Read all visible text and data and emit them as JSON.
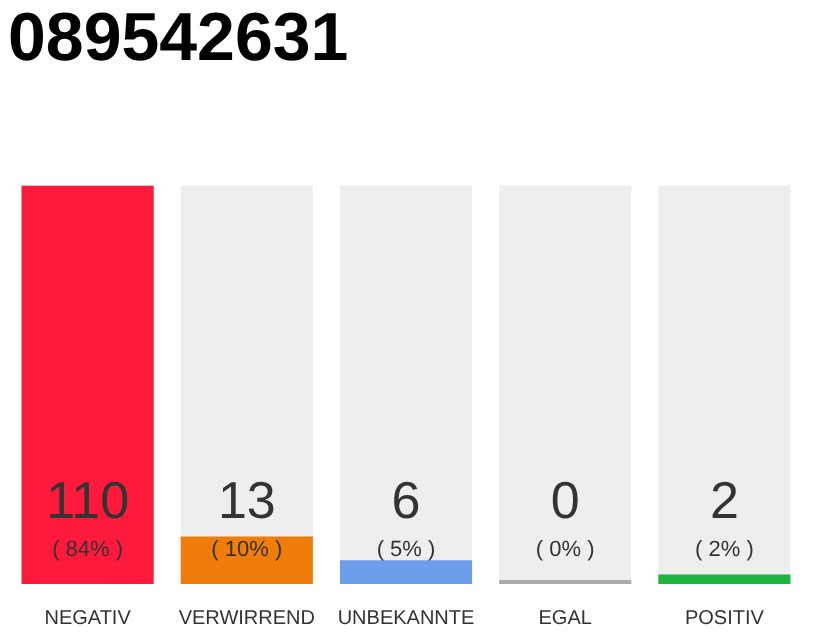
{
  "chart_data": {
    "type": "bar",
    "title": "089542631",
    "categories": [
      "NEGATIV",
      "VERWIRREND",
      "UNBEKANNTE",
      "EGAL",
      "POSITIV"
    ],
    "values": [
      84,
      10,
      5,
      0,
      2
    ],
    "colors": [
      "#ff1a3c",
      "#f07c0a",
      "#6d9eeb",
      "#aaaaaa",
      "#1db33f"
    ],
    "value_labels": [
      "( 84% )",
      "( 10% )",
      "( 5% )",
      "( 0% )",
      "( 2% )"
    ],
    "annotations": [
      "110",
      "13",
      "6",
      "0",
      "2"
    ],
    "ylim": [
      0,
      84
    ],
    "tick_labels": "x",
    "grid": false,
    "legend": false
  }
}
